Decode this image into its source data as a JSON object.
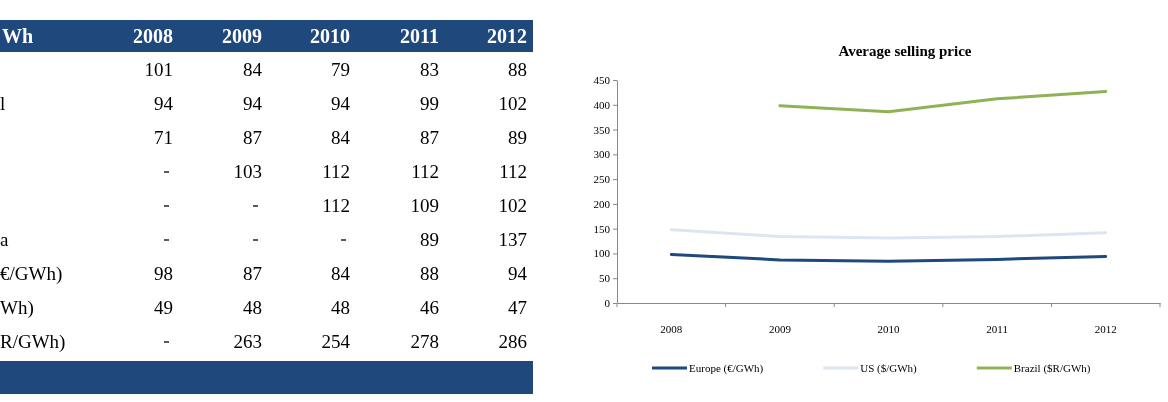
{
  "chart_data": [
    {
      "type": "heatmap",
      "ylabel": "Wh",
      "categories": [
        "2008",
        "2009",
        "2010",
        "2011",
        "2012"
      ],
      "y_categories": [
        null,
        "l",
        null,
        null,
        null,
        "a",
        "€/GWh)",
        "Wh)",
        "R/GWh)"
      ],
      "data_labels": true,
      "cells": [
        [
          101,
          84,
          79,
          83,
          88
        ],
        [
          94,
          94,
          94,
          99,
          102
        ],
        [
          71,
          87,
          84,
          87,
          89
        ],
        [
          null,
          103,
          112,
          112,
          112
        ],
        [
          null,
          null,
          112,
          109,
          102
        ],
        [
          null,
          null,
          null,
          89,
          137
        ],
        [
          98,
          87,
          84,
          88,
          94
        ],
        [
          49,
          48,
          48,
          46,
          47
        ],
        [
          null,
          263,
          254,
          278,
          286
        ]
      ]
    },
    {
      "type": "line",
      "title": "Average selling price",
      "categories": [
        "2008",
        "2009",
        "2010",
        "2011",
        "2012"
      ],
      "series": [
        {
          "name": "Europe (€/GWh)",
          "color": "#1f497d",
          "values": [
            98,
            87,
            84,
            88,
            94
          ]
        },
        {
          "name": "US ($/GWh)",
          "color": "#dce6f2",
          "values": [
            148,
            134,
            131,
            134,
            142
          ]
        },
        {
          "name": "Brazil ($R/GWh)",
          "color": "#8db356",
          "values": [
            null,
            398,
            386,
            412,
            427
          ]
        }
      ],
      "ylim": [
        0,
        450
      ],
      "yticks": [
        0,
        50,
        100,
        150,
        200,
        250,
        300,
        350,
        400,
        450
      ],
      "grid": false,
      "legend": "bottom"
    }
  ]
}
